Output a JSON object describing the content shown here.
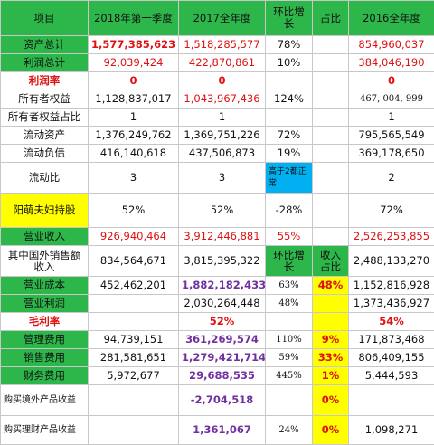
{
  "header": {
    "item": "项目",
    "q1_2018": "2018年第一季度",
    "full_2017": "2017全年度",
    "qoq_growth": "环比增长",
    "share": "占比",
    "full_2016": "2016全年度"
  },
  "rows": {
    "total_assets": {
      "label": "资产总计",
      "q1_2018": "1,577,385,623",
      "full_2017": "1,518,285,577",
      "qoq": "78%",
      "share": "",
      "full_2016": "854,960,037"
    },
    "total_profit": {
      "label": "利润总计",
      "q1_2018": "92,039,424",
      "full_2017": "422,870,861",
      "qoq": "10%",
      "share": "",
      "full_2016": "384,046,190"
    },
    "profit_rate": {
      "label": "利润率",
      "q1_2018": "0",
      "full_2017": "0",
      "qoq": "",
      "share": "",
      "full_2016": "0"
    },
    "owner_equity": {
      "label": "所有者权益",
      "q1_2018": "1,128,837,017",
      "full_2017": "1,043,967,436",
      "qoq": "124%",
      "share": "",
      "full_2016": "467, 004, 999"
    },
    "owner_equity_ratio": {
      "label": "所有者权益占比",
      "q1_2018": "1",
      "full_2017": "1",
      "qoq": "",
      "share": "",
      "full_2016": "1"
    },
    "current_assets": {
      "label": "流动资产",
      "q1_2018": "1,376,249,762",
      "full_2017": "1,369,751,226",
      "qoq": "72%",
      "share": "",
      "full_2016": "795,565,549"
    },
    "current_liabilities": {
      "label": "流动负债",
      "q1_2018": "416,140,618",
      "full_2017": "437,506,873",
      "qoq": "19%",
      "share": "",
      "full_2016": "369,178,650"
    },
    "current_ratio": {
      "label": "流动比",
      "q1_2018": "3",
      "full_2017": "3",
      "qoq": "高于2都正常",
      "share": "",
      "full_2016": "2"
    },
    "yangmeng_holding": {
      "label": "阳萌夫妇持股",
      "q1_2018": "52%",
      "full_2017": "52%",
      "qoq": "-28%",
      "share": "",
      "full_2016": "72%"
    },
    "revenue": {
      "label": "营业收入",
      "q1_2018": "926,940,464",
      "full_2017": "3,912,446,881",
      "qoq": "55%",
      "share": "",
      "full_2016": "2,526,253,855"
    },
    "overseas_sales": {
      "label": "其中国外销售额收入",
      "q1_2018": "834,564,671",
      "full_2017": "3,815,395,322",
      "qoq": "环比增长",
      "share": "收入占比",
      "full_2016": "2,488,133,270"
    },
    "operating_cost": {
      "label": "营业成本",
      "q1_2018": "452,462,201",
      "full_2017": "1,882,182,433",
      "qoq": "63%",
      "share": "48%",
      "full_2016": "1,152,816,928"
    },
    "operating_profit": {
      "label": "营业利润",
      "q1_2018": "",
      "full_2017": "2,030,264,448",
      "qoq": "48%",
      "share": "",
      "full_2016": "1,373,436,927"
    },
    "gross_margin": {
      "label": "毛利率",
      "q1_2018": "",
      "full_2017": "52%",
      "qoq": "",
      "share": "",
      "full_2016": "54%"
    },
    "admin_expense": {
      "label": "管理费用",
      "q1_2018": "94,739,151",
      "full_2017": "361,269,574",
      "qoq": "110%",
      "share": "9%",
      "full_2016": "171,873,468"
    },
    "sales_expense": {
      "label": "销售费用",
      "q1_2018": "281,581,651",
      "full_2017": "1,279,421,714",
      "qoq": "59%",
      "share": "33%",
      "full_2016": "806,409,155"
    },
    "finance_expense": {
      "label": "财务费用",
      "q1_2018": "5,972,677",
      "full_2017": "29,688,535",
      "qoq": "445%",
      "share": "1%",
      "full_2016": "5,444,593"
    },
    "overseas_product_income": {
      "label": "购买境外产品收益",
      "q1_2018": "",
      "full_2017": "-2,704,518",
      "qoq": "",
      "share": "0%",
      "full_2016": ""
    },
    "wealth_product_income": {
      "label": "购买理财产品收益",
      "q1_2018": "",
      "full_2017": "1,361,067",
      "qoq": "24%",
      "share": "0%",
      "full_2016": "1,098,271"
    }
  },
  "colors": {
    "green": "#2db64a",
    "yellow": "#ffff00",
    "blue": "#00b0f0",
    "red": "#e01010",
    "purple": "#7030a0"
  }
}
